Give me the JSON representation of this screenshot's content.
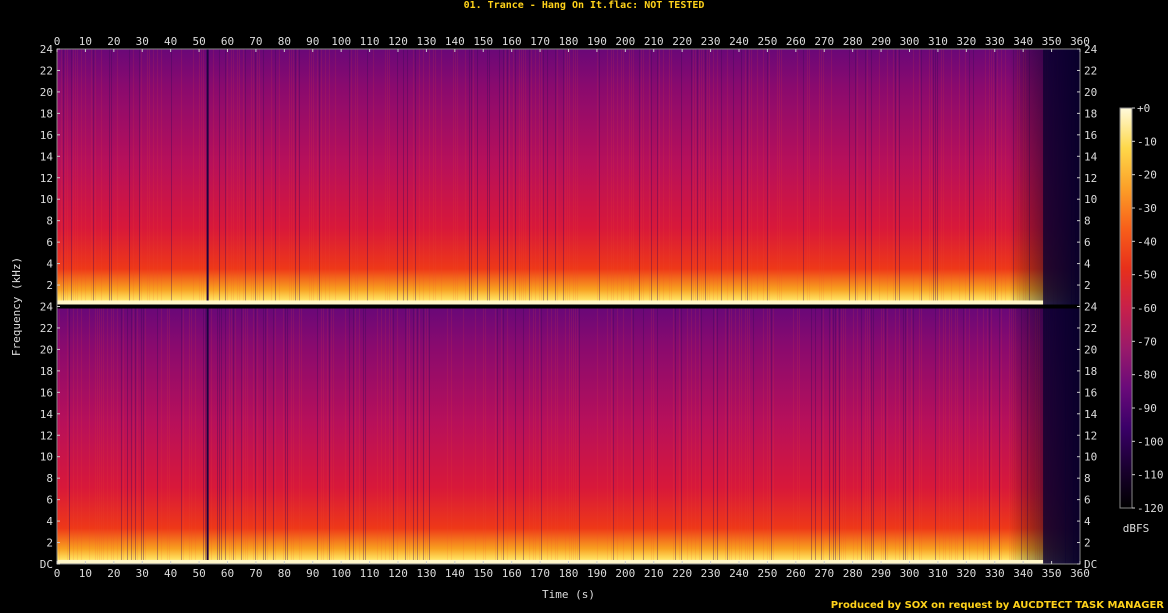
{
  "title": "01. Trance - Hang On It.flac: NOT TESTED",
  "footer": "Produced by SOX on request by AUCDTECT TASK MANAGER",
  "colors": {
    "background": "#000000",
    "title": "#ffd21a",
    "axis_text": "#dddddd"
  },
  "chart_data": {
    "type": "heatmap",
    "subtype": "spectrogram",
    "channels": 2,
    "xlabel": "Time (s)",
    "ylabel": "Frequency (kHz)",
    "xlim": [
      0,
      360
    ],
    "ylim": [
      0,
      24
    ],
    "x_ticks": [
      "0",
      "10",
      "20",
      "30",
      "40",
      "50",
      "60",
      "70",
      "80",
      "90",
      "100",
      "110",
      "120",
      "130",
      "140",
      "150",
      "160",
      "170",
      "180",
      "190",
      "200",
      "210",
      "220",
      "230",
      "240",
      "250",
      "260",
      "270",
      "280",
      "290",
      "300",
      "310",
      "320",
      "330",
      "340",
      "350",
      "360"
    ],
    "y_ticks_top_channel": [
      "24",
      "22",
      "20",
      "18",
      "16",
      "14",
      "12",
      "10",
      "8",
      "6",
      "4",
      "2"
    ],
    "y_ticks_bottom_channel": [
      "24",
      "22",
      "20",
      "18",
      "16",
      "14",
      "12",
      "10",
      "8",
      "6",
      "4",
      "2",
      "DC"
    ],
    "colorbar": {
      "label": "dBFS",
      "range": [
        -120,
        0
      ],
      "ticks": [
        "+0",
        "-10",
        "-20",
        "-30",
        "-40",
        "-50",
        "-60",
        "-70",
        "-80",
        "-90",
        "-100",
        "-110",
        "-120"
      ],
      "colormap": [
        "#000000",
        "#1a0030",
        "#3a0068",
        "#6a0a7a",
        "#9a1a6a",
        "#c8204a",
        "#e8301a",
        "#f8601a",
        "#fca028",
        "#fed84a",
        "#fffadc"
      ]
    },
    "audio_end_s": 347,
    "notable_dropouts_s": [
      53
    ]
  }
}
